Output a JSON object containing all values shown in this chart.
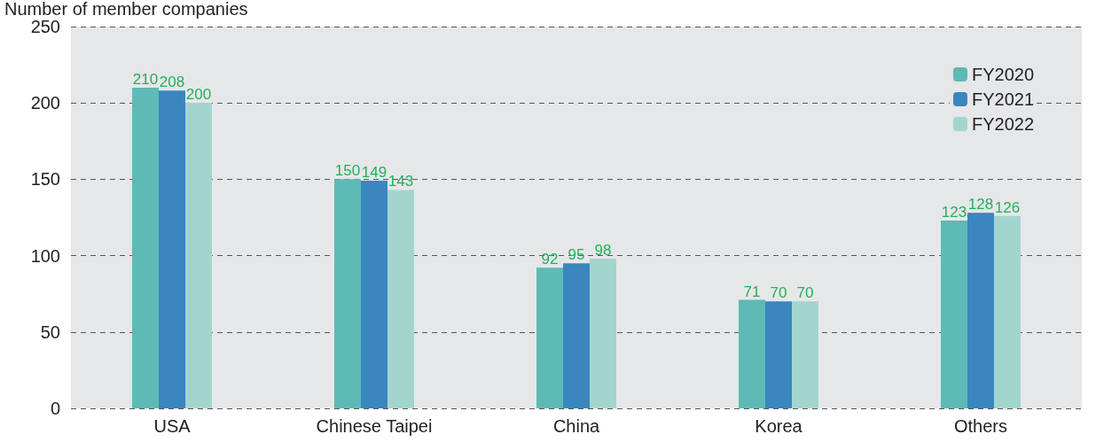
{
  "chart_data": {
    "type": "bar",
    "ylabel": "Number of member companies",
    "categories": [
      "USA",
      "Chinese Taipei",
      "China",
      "Korea",
      "Others"
    ],
    "series": [
      {
        "name": "FY2020",
        "color": "#5dbab5",
        "values": [
          210,
          150,
          92,
          71,
          123
        ]
      },
      {
        "name": "FY2021",
        "color": "#3a86be",
        "values": [
          208,
          149,
          95,
          70,
          128
        ]
      },
      {
        "name": "FY2022",
        "color": "#a3d5cf",
        "values": [
          200,
          143,
          98,
          70,
          126
        ]
      }
    ],
    "ylim": [
      0,
      250
    ],
    "yticks": [
      0,
      50,
      100,
      150,
      200,
      250
    ],
    "grid": "y",
    "legend": "top right",
    "data_labels": true
  }
}
